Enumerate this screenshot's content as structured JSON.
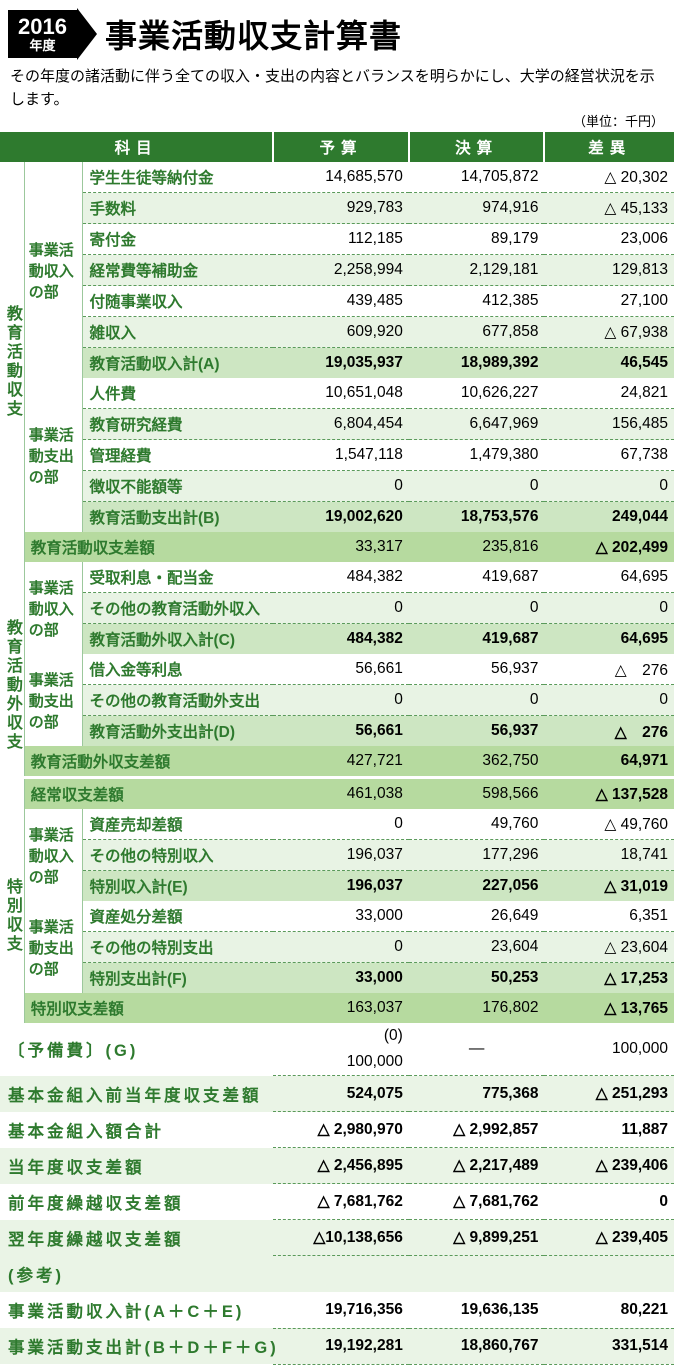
{
  "header": {
    "year": "2016",
    "year_label": "年度",
    "title": "事業活動収支計算書"
  },
  "intro": "その年度の諸活動に伴う全ての収入・支出の内容とバランスを明らかにし、大学の経営状況を示します。",
  "unit": "（単位：千円）",
  "columns": {
    "item": "科目",
    "budget": "予算",
    "actual": "決算",
    "diff": "差異"
  },
  "colors": {
    "header_bg": "#2e7a2e",
    "text_green": "#2e7a2e",
    "row_light": "#e8f3e4",
    "row_sum": "#cde6c2",
    "row_total": "#b6da9f"
  },
  "sections": [
    {
      "vcat": "教育活動収支",
      "groups": [
        {
          "sub": "事業活動収入の部",
          "rows": [
            {
              "item": "学生生徒等納付金",
              "b": "14,685,570",
              "a": "14,705,872",
              "d": "△ 20,302"
            },
            {
              "item": "手数料",
              "b": "929,783",
              "a": "974,916",
              "d": "△ 45,133"
            },
            {
              "item": "寄付金",
              "b": "112,185",
              "a": "89,179",
              "d": "23,006"
            },
            {
              "item": "経常費等補助金",
              "b": "2,258,994",
              "a": "2,129,181",
              "d": "129,813"
            },
            {
              "item": "付随事業収入",
              "b": "439,485",
              "a": "412,385",
              "d": "27,100"
            },
            {
              "item": "雑収入",
              "b": "609,920",
              "a": "677,858",
              "d": "△ 67,938"
            }
          ],
          "sum": {
            "item": "教育活動収入計(A)",
            "b": "19,035,937",
            "a": "18,989,392",
            "d": "46,545"
          }
        },
        {
          "sub": "事業活動支出の部",
          "rows": [
            {
              "item": "人件費",
              "b": "10,651,048",
              "a": "10,626,227",
              "d": "24,821"
            },
            {
              "item": "教育研究経費",
              "b": "6,804,454",
              "a": "6,647,969",
              "d": "156,485"
            },
            {
              "item": "管理経費",
              "b": "1,547,118",
              "a": "1,479,380",
              "d": "67,738"
            },
            {
              "item": "徴収不能額等",
              "b": "0",
              "a": "0",
              "d": "0"
            }
          ],
          "sum": {
            "item": "教育活動支出計(B)",
            "b": "19,002,620",
            "a": "18,753,576",
            "d": "249,044"
          }
        }
      ],
      "total": {
        "item": "教育活動収支差額",
        "b": "33,317",
        "a": "235,816",
        "d": "△ 202,499"
      }
    },
    {
      "vcat": "教育活動外収支",
      "groups": [
        {
          "sub": "事業活動収入の部",
          "rows": [
            {
              "item": "受取利息・配当金",
              "b": "484,382",
              "a": "419,687",
              "d": "64,695"
            },
            {
              "item": "その他の教育活動外収入",
              "b": "0",
              "a": "0",
              "d": "0"
            }
          ],
          "sum": {
            "item": "教育活動外収入計(C)",
            "b": "484,382",
            "a": "419,687",
            "d": "64,695"
          }
        },
        {
          "sub": "事業活動支出の部",
          "rows": [
            {
              "item": "借入金等利息",
              "b": "56,661",
              "a": "56,937",
              "d": "△　276"
            },
            {
              "item": "その他の教育活動外支出",
              "b": "0",
              "a": "0",
              "d": "0"
            }
          ],
          "sum": {
            "item": "教育活動外支出計(D)",
            "b": "56,661",
            "a": "56,937",
            "d": "△　276"
          }
        }
      ],
      "total": {
        "item": "教育活動外収支差額",
        "b": "427,721",
        "a": "362,750",
        "d": "64,971"
      }
    }
  ],
  "keijou": {
    "item": "経常収支差額",
    "b": "461,038",
    "a": "598,566",
    "d": "△ 137,528"
  },
  "tokubetsu": {
    "vcat": "特別収支",
    "groups": [
      {
        "sub": "事業活動収入の部",
        "rows": [
          {
            "item": "資産売却差額",
            "b": "0",
            "a": "49,760",
            "d": "△ 49,760"
          },
          {
            "item": "その他の特別収入",
            "b": "196,037",
            "a": "177,296",
            "d": "18,741"
          }
        ],
        "sum": {
          "item": "特別収入計(E)",
          "b": "196,037",
          "a": "227,056",
          "d": "△ 31,019"
        }
      },
      {
        "sub": "事業活動支出の部",
        "rows": [
          {
            "item": "資産処分差額",
            "b": "33,000",
            "a": "26,649",
            "d": "6,351"
          },
          {
            "item": "その他の特別支出",
            "b": "0",
            "a": "23,604",
            "d": "△ 23,604"
          }
        ],
        "sum": {
          "item": "特別支出計(F)",
          "b": "33,000",
          "a": "50,253",
          "d": "△ 17,253"
        }
      }
    ],
    "total": {
      "item": "特別収支差額",
      "b": "163,037",
      "a": "176,802",
      "d": "△ 13,765"
    }
  },
  "reserve": {
    "label": "〔予備費〕(G)",
    "b1": "(0)",
    "b2": "100,000",
    "a": "―",
    "d": "100,000"
  },
  "summary": [
    {
      "label": "基本金組入前当年度収支差額",
      "b": "524,075",
      "a": "775,368",
      "d": "△ 251,293"
    },
    {
      "label": "基本金組入額合計",
      "b": "△ 2,980,970",
      "a": "△ 2,992,857",
      "d": "11,887"
    },
    {
      "label": "当年度収支差額",
      "b": "△ 2,456,895",
      "a": "△ 2,217,489",
      "d": "△ 239,406"
    },
    {
      "label": "前年度繰越収支差額",
      "b": "△ 7,681,762",
      "a": "△ 7,681,762",
      "d": "0"
    },
    {
      "label": "翌年度繰越収支差額",
      "b": "△10,138,656",
      "a": "△ 9,899,251",
      "d": "△ 239,405"
    }
  ],
  "reference": {
    "label": "(参考)",
    "rows": [
      {
        "label": "事業活動収入計(A＋C＋E)",
        "b": "19,716,356",
        "a": "19,636,135",
        "d": "80,221"
      },
      {
        "label": "事業活動支出計(B＋D＋F＋G)",
        "b": "19,192,281",
        "a": "18,860,767",
        "d": "331,514"
      }
    ]
  }
}
